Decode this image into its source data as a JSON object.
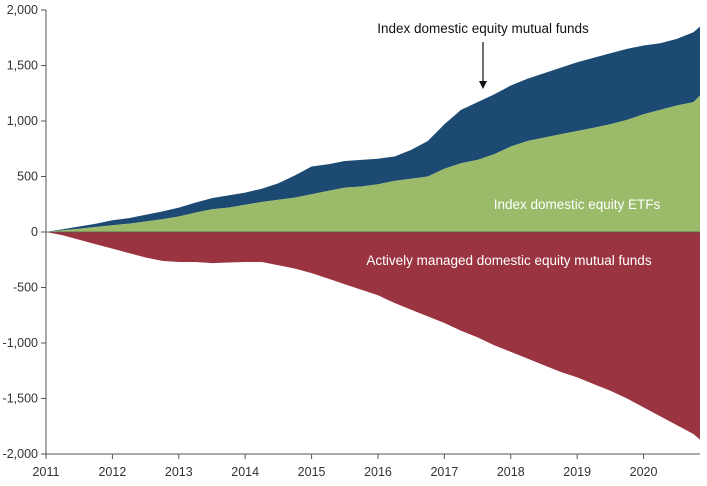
{
  "chart_data": {
    "type": "area",
    "x": [
      2011.0,
      2011.25,
      2011.5,
      2011.75,
      2012.0,
      2012.25,
      2012.5,
      2012.75,
      2013.0,
      2013.25,
      2013.5,
      2013.75,
      2014.0,
      2014.25,
      2014.5,
      2014.75,
      2015.0,
      2015.25,
      2015.5,
      2015.75,
      2016.0,
      2016.25,
      2016.5,
      2016.75,
      2017.0,
      2017.25,
      2017.5,
      2017.75,
      2018.0,
      2018.25,
      2018.5,
      2018.75,
      2019.0,
      2019.25,
      2019.5,
      2019.75,
      2020.0,
      2020.25,
      2020.5,
      2020.75,
      2020.85
    ],
    "series": [
      {
        "name": "Index domestic equity ETFs",
        "color": "#9bbb6a",
        "values": [
          0,
          15,
          30,
          45,
          60,
          75,
          95,
          115,
          140,
          175,
          205,
          220,
          245,
          270,
          290,
          310,
          340,
          370,
          400,
          410,
          430,
          460,
          480,
          500,
          570,
          620,
          650,
          700,
          770,
          820,
          850,
          880,
          910,
          940,
          970,
          1010,
          1060,
          1100,
          1140,
          1170,
          1230
        ]
      },
      {
        "name": "Index domestic equity mutual funds",
        "color": "#1d4a73",
        "values": [
          0,
          10,
          20,
          30,
          45,
          50,
          60,
          70,
          80,
          90,
          100,
          110,
          110,
          120,
          150,
          200,
          250,
          240,
          240,
          240,
          230,
          220,
          260,
          320,
          400,
          480,
          520,
          540,
          550,
          560,
          580,
          600,
          620,
          630,
          640,
          640,
          620,
          600,
          600,
          630,
          620
        ]
      },
      {
        "name": "Actively managed domestic equity mutual funds",
        "color": "#9b3441",
        "values": [
          0,
          -30,
          -70,
          -110,
          -150,
          -190,
          -230,
          -260,
          -270,
          -270,
          -280,
          -275,
          -270,
          -270,
          -300,
          -330,
          -370,
          -420,
          -470,
          -520,
          -570,
          -640,
          -700,
          -760,
          -820,
          -890,
          -950,
          -1020,
          -1080,
          -1140,
          -1200,
          -1260,
          -1310,
          -1370,
          -1430,
          -1500,
          -1580,
          -1660,
          -1740,
          -1820,
          -1870
        ]
      }
    ],
    "x_ticks": [
      "2011",
      "2012",
      "2013",
      "2014",
      "2015",
      "2016",
      "2017",
      "2018",
      "2019",
      "2020"
    ],
    "y_ticks": [
      "2,000",
      "1,500",
      "1,000",
      "500",
      "0",
      "-500",
      "-1,000",
      "-1,500",
      "-2,000"
    ],
    "ylim": [
      -2000,
      2000
    ],
    "xlim": [
      2011,
      2020.85
    ],
    "grid": false,
    "legend": "inline-labels",
    "annotations": {
      "mutual_funds_label": "Index domestic equity mutual funds",
      "etfs_label": "Index domestic equity ETFs",
      "active_label": "Actively managed domestic equity mutual funds"
    },
    "title": "",
    "xlabel": "",
    "ylabel": ""
  }
}
